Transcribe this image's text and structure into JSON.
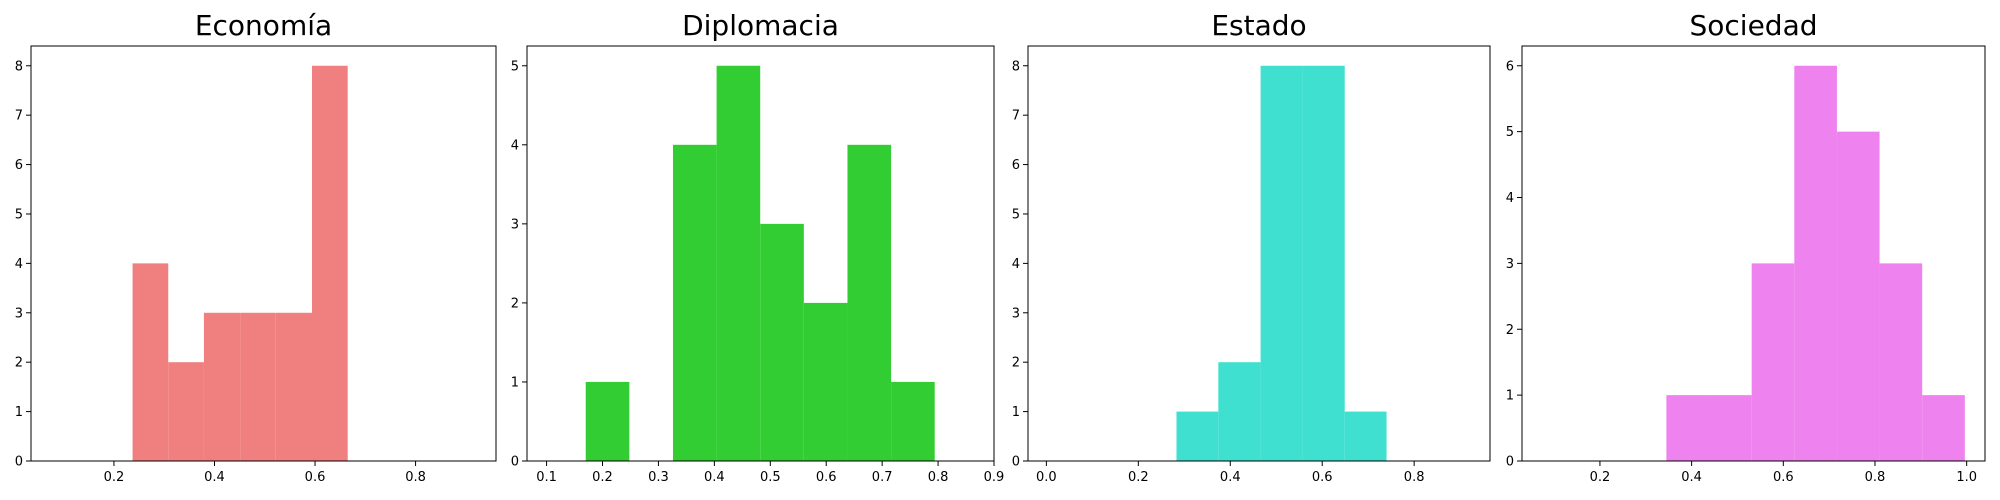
{
  "chart_data": [
    {
      "type": "bar",
      "title": "Economía",
      "color": "#F08080",
      "xlim": [
        0.035,
        0.96
      ],
      "ylim": [
        0,
        8.4
      ],
      "xticks": [
        0.2,
        0.4,
        0.6,
        0.8
      ],
      "xtick_labels": [
        "0.2",
        "0.4",
        "0.6",
        "0.8"
      ],
      "yticks": [
        0,
        1,
        2,
        3,
        4,
        5,
        6,
        7,
        8
      ],
      "bins": [
        {
          "x0": 0.237,
          "x1": 0.308,
          "count": 4
        },
        {
          "x0": 0.308,
          "x1": 0.379,
          "count": 2
        },
        {
          "x0": 0.379,
          "x1": 0.451,
          "count": 3
        },
        {
          "x0": 0.451,
          "x1": 0.522,
          "count": 3
        },
        {
          "x0": 0.522,
          "x1": 0.594,
          "count": 3
        },
        {
          "x0": 0.594,
          "x1": 0.665,
          "count": 8
        }
      ]
    },
    {
      "type": "bar",
      "title": "Diplomacia",
      "color": "#32CD32",
      "xlim": [
        0.065,
        0.9
      ],
      "ylim": [
        0,
        5.25
      ],
      "xticks": [
        0.1,
        0.2,
        0.3,
        0.4,
        0.5,
        0.6,
        0.7,
        0.8,
        0.9
      ],
      "xtick_labels": [
        "0.1",
        "0.2",
        "0.3",
        "0.4",
        "0.5",
        "0.6",
        "0.7",
        "0.8",
        "0.9"
      ],
      "yticks": [
        0,
        1,
        2,
        3,
        4,
        5
      ],
      "bins": [
        {
          "x0": 0.17,
          "x1": 0.248,
          "count": 1
        },
        {
          "x0": 0.248,
          "x1": 0.326,
          "count": 0
        },
        {
          "x0": 0.326,
          "x1": 0.404,
          "count": 4
        },
        {
          "x0": 0.404,
          "x1": 0.482,
          "count": 5
        },
        {
          "x0": 0.482,
          "x1": 0.56,
          "count": 3
        },
        {
          "x0": 0.56,
          "x1": 0.638,
          "count": 2
        },
        {
          "x0": 0.638,
          "x1": 0.716,
          "count": 4
        },
        {
          "x0": 0.716,
          "x1": 0.794,
          "count": 1
        }
      ]
    },
    {
      "type": "bar",
      "title": "Estado",
      "color": "#40E0D0",
      "xlim": [
        -0.04,
        0.965
      ],
      "ylim": [
        0,
        8.4
      ],
      "xticks": [
        0.0,
        0.2,
        0.4,
        0.6,
        0.8
      ],
      "xtick_labels": [
        "0.0",
        "0.2",
        "0.4",
        "0.6",
        "0.8"
      ],
      "yticks": [
        0,
        1,
        2,
        3,
        4,
        5,
        6,
        7,
        8
      ],
      "bins": [
        {
          "x0": 0.283,
          "x1": 0.374,
          "count": 1
        },
        {
          "x0": 0.374,
          "x1": 0.466,
          "count": 2
        },
        {
          "x0": 0.466,
          "x1": 0.557,
          "count": 8
        },
        {
          "x0": 0.557,
          "x1": 0.649,
          "count": 8
        },
        {
          "x0": 0.649,
          "x1": 0.74,
          "count": 1
        }
      ]
    },
    {
      "type": "bar",
      "title": "Sociedad",
      "color": "#EE82EE",
      "xlim": [
        0.03,
        1.04
      ],
      "ylim": [
        0,
        6.3
      ],
      "xticks": [
        0.2,
        0.4,
        0.6,
        0.8,
        1.0
      ],
      "xtick_labels": [
        "0.2",
        "0.4",
        "0.6",
        "0.8",
        "1.0"
      ],
      "yticks": [
        0,
        1,
        2,
        3,
        4,
        5,
        6
      ],
      "bins": [
        {
          "x0": 0.345,
          "x1": 0.438,
          "count": 1
        },
        {
          "x0": 0.438,
          "x1": 0.531,
          "count": 1
        },
        {
          "x0": 0.531,
          "x1": 0.624,
          "count": 3
        },
        {
          "x0": 0.624,
          "x1": 0.717,
          "count": 6
        },
        {
          "x0": 0.717,
          "x1": 0.81,
          "count": 5
        },
        {
          "x0": 0.81,
          "x1": 0.903,
          "count": 3
        },
        {
          "x0": 0.903,
          "x1": 0.996,
          "count": 1
        }
      ]
    }
  ]
}
